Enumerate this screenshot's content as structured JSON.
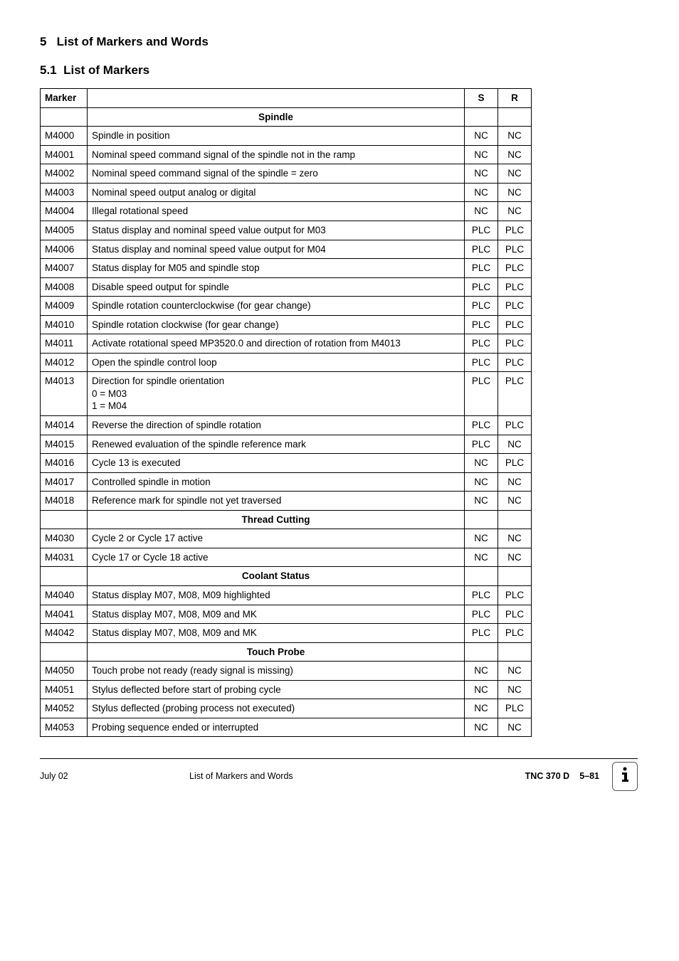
{
  "heading1_num": "5",
  "heading1_text": "List of Markers and Words",
  "heading2_num": "5.1",
  "heading2_text": "List of Markers",
  "table": {
    "headers": {
      "marker": "Marker",
      "s": "S",
      "r": "R"
    },
    "sections": [
      {
        "title": "Spindle",
        "rows": [
          {
            "m": "M4000",
            "d": "Spindle in position",
            "s": "NC",
            "r": "NC"
          },
          {
            "m": "M4001",
            "d": "Nominal speed command signal of the spindle not in the ramp",
            "s": "NC",
            "r": "NC"
          },
          {
            "m": "M4002",
            "d": "Nominal speed command signal of the spindle = zero",
            "s": "NC",
            "r": "NC"
          },
          {
            "m": "M4003",
            "d": "Nominal speed output analog or digital",
            "s": "NC",
            "r": "NC"
          },
          {
            "m": "M4004",
            "d": "Illegal rotational speed",
            "s": "NC",
            "r": "NC"
          },
          {
            "m": "M4005",
            "d": "Status display and nominal speed value output for M03",
            "s": "PLC",
            "r": "PLC"
          },
          {
            "m": "M4006",
            "d": "Status display and nominal speed value output for M04",
            "s": "PLC",
            "r": "PLC"
          },
          {
            "m": "M4007",
            "d": "Status display for M05 and spindle stop",
            "s": "PLC",
            "r": "PLC"
          },
          {
            "m": "M4008",
            "d": "Disable speed output for spindle",
            "s": "PLC",
            "r": "PLC"
          },
          {
            "m": "M4009",
            "d": "Spindle rotation counterclockwise (for gear change)",
            "s": "PLC",
            "r": "PLC"
          },
          {
            "m": "M4010",
            "d": "Spindle rotation clockwise (for gear change)",
            "s": "PLC",
            "r": "PLC"
          },
          {
            "m": "M4011",
            "d": "Activate rotational speed MP3520.0 and direction of rotation from M4013",
            "s": "PLC",
            "r": "PLC"
          },
          {
            "m": "M4012",
            "d": "Open the spindle control loop",
            "s": "PLC",
            "r": "PLC"
          },
          {
            "m": "M4013",
            "d": "Direction for spindle orientation\n0 = M03\n1 = M04",
            "s": "PLC",
            "r": "PLC"
          },
          {
            "m": "M4014",
            "d": "Reverse the direction of spindle rotation",
            "s": "PLC",
            "r": "PLC"
          },
          {
            "m": "M4015",
            "d": "Renewed evaluation of the spindle reference mark",
            "s": "PLC",
            "r": "NC"
          },
          {
            "m": "M4016",
            "d": "Cycle 13 is executed",
            "s": "NC",
            "r": "PLC"
          },
          {
            "m": "M4017",
            "d": "Controlled spindle in motion",
            "s": "NC",
            "r": "NC"
          },
          {
            "m": "M4018",
            "d": "Reference mark for spindle not yet traversed",
            "s": "NC",
            "r": "NC"
          }
        ]
      },
      {
        "title": "Thread Cutting",
        "rows": [
          {
            "m": "M4030",
            "d": "Cycle 2 or Cycle 17 active",
            "s": "NC",
            "r": "NC"
          },
          {
            "m": "M4031",
            "d": "Cycle 17 or Cycle 18 active",
            "s": "NC",
            "r": "NC"
          }
        ]
      },
      {
        "title": "Coolant Status",
        "rows": [
          {
            "m": "M4040",
            "d": "Status display M07, M08, M09 highlighted",
            "s": "PLC",
            "r": "PLC"
          },
          {
            "m": "M4041",
            "d": "Status display M07, M08, M09 and MK",
            "s": "PLC",
            "r": "PLC"
          },
          {
            "m": "M4042",
            "d": "Status display M07, M08, M09 and MK",
            "s": "PLC",
            "r": "PLC"
          }
        ]
      },
      {
        "title": "Touch Probe",
        "rows": [
          {
            "m": "M4050",
            "d": "Touch probe not ready (ready signal is missing)",
            "s": "NC",
            "r": "NC"
          },
          {
            "m": "M4051",
            "d": "Stylus deflected before start of probing cycle",
            "s": "NC",
            "r": "NC"
          },
          {
            "m": "M4052",
            "d": "Stylus deflected (probing process not executed)",
            "s": "NC",
            "r": "PLC"
          },
          {
            "m": "M4053",
            "d": "Probing sequence ended or interrupted",
            "s": "NC",
            "r": "NC"
          }
        ]
      }
    ]
  },
  "footer": {
    "date": "July  02",
    "center": "List of Markers and Words",
    "doc": "TNC 370 D",
    "page": "5–81"
  }
}
